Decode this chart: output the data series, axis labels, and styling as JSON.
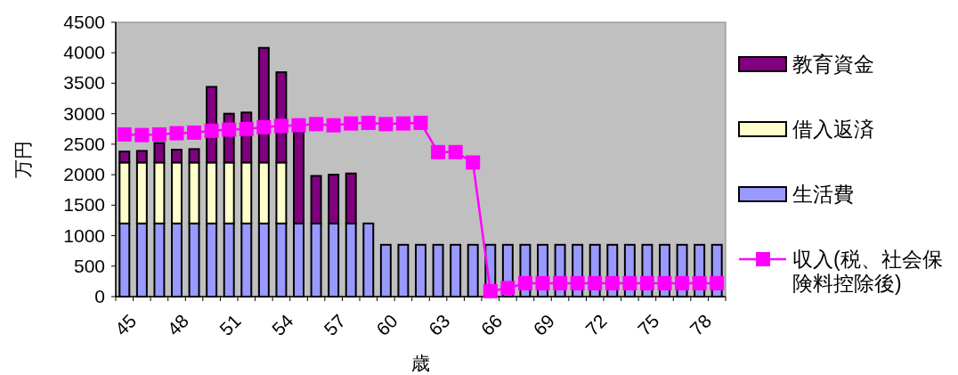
{
  "chart_data": {
    "type": "bar",
    "stacked": true,
    "xlabel": "歳",
    "ylabel": "万円",
    "categories": [
      "45",
      null,
      null,
      "48",
      null,
      null,
      "51",
      null,
      null,
      "54",
      null,
      null,
      "57",
      null,
      null,
      "60",
      null,
      null,
      "63",
      null,
      null,
      "66",
      null,
      null,
      "69",
      null,
      null,
      "72",
      null,
      null,
      "75",
      null,
      null,
      "78",
      null
    ],
    "ylim": [
      0,
      4500
    ],
    "yticks": [
      0,
      500,
      1000,
      1500,
      2000,
      2500,
      3000,
      3500,
      4000,
      4500
    ],
    "grid": false,
    "legend": "right",
    "series": [
      {
        "name": "生活費",
        "color": "#9999ff",
        "values": [
          1200,
          1200,
          1200,
          1200,
          1200,
          1200,
          1200,
          1200,
          1200,
          1200,
          1200,
          1200,
          1200,
          1200,
          1200,
          850,
          850,
          850,
          850,
          850,
          850,
          850,
          850,
          850,
          850,
          850,
          850,
          850,
          850,
          850,
          850,
          850,
          850,
          850,
          850
        ]
      },
      {
        "name": "借入返済",
        "color": "#ffffcc",
        "values": [
          1000,
          1000,
          1000,
          1000,
          1000,
          1000,
          1000,
          1000,
          1000,
          1000,
          null,
          null,
          null,
          null,
          null,
          null,
          null,
          null,
          null,
          null,
          null,
          null,
          null,
          null,
          null,
          null,
          null,
          null,
          null,
          null,
          null,
          null,
          null,
          null,
          null
        ]
      },
      {
        "name": "教育資金",
        "color": "#800080",
        "values": [
          180,
          190,
          320,
          210,
          220,
          1240,
          800,
          820,
          1880,
          1480,
          1500,
          780,
          800,
          820,
          null,
          null,
          null,
          null,
          null,
          null,
          null,
          null,
          null,
          null,
          null,
          null,
          null,
          null,
          null,
          null,
          null,
          null,
          null,
          null,
          null
        ]
      },
      {
        "name": "収入(税、社会保険料控除後)",
        "type": "line",
        "color": "#ff00ff",
        "marker": "square",
        "values": [
          2660,
          2650,
          2660,
          2680,
          2690,
          2720,
          2740,
          2750,
          2780,
          2800,
          2810,
          2830,
          2810,
          2840,
          2850,
          2830,
          2840,
          2850,
          2370,
          2370,
          2200,
          90,
          140,
          220,
          220,
          220,
          220,
          220,
          220,
          220,
          220,
          220,
          220,
          220,
          220
        ]
      }
    ]
  }
}
